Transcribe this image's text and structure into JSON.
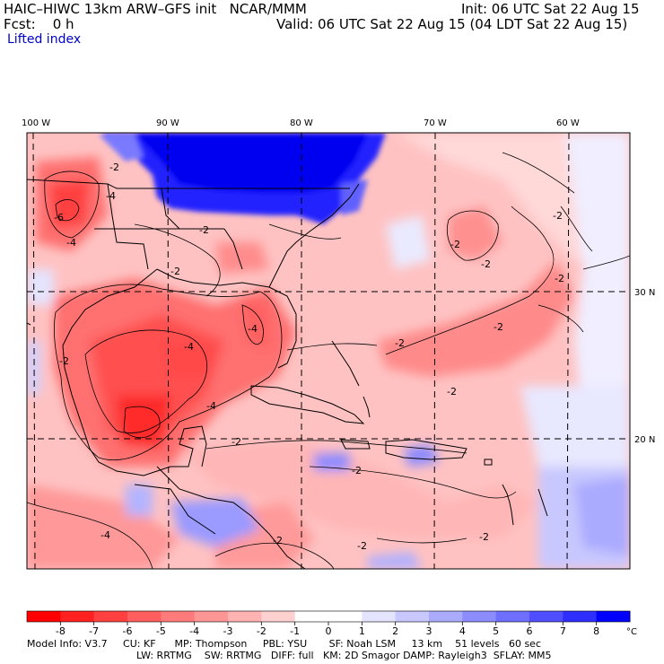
{
  "header": {
    "title_line": "HAIC–HIWC 13km ARW–GFS init   NCAR/MMM",
    "init": "Init: 06 UTC Sat 22 Aug 15",
    "fcst": "Fcst:    0 h",
    "valid": "Valid: 06 UTC Sat 22 Aug 15 (04 LDT Sat 22 Aug 15)",
    "field": "Lifted index"
  },
  "map": {
    "lon_labels": [
      "100 W",
      "90 W",
      "80 W",
      "70 W",
      "60 W"
    ],
    "lat_labels": [
      "30 N",
      "20 N"
    ],
    "contour_labels": [
      "-2",
      "-4",
      "-6"
    ]
  },
  "colorbar": {
    "ticks": [
      "-8",
      "-7",
      "-6",
      "-5",
      "-4",
      "-3",
      "-2",
      "-1",
      "0",
      "1",
      "2",
      "3",
      "4",
      "5",
      "6",
      "7",
      "8"
    ],
    "unit": "°C",
    "colors": [
      "#ff0000",
      "#ff2020",
      "#ff4040",
      "#ff5e5e",
      "#ff7a7a",
      "#ff9696",
      "#ffb2b2",
      "#ffd0d0",
      "#ffffff",
      "#e4e4ff",
      "#c8c8ff",
      "#aaaaff",
      "#8c8cff",
      "#6e6eff",
      "#4f4fff",
      "#2e2eff",
      "#0000ff"
    ]
  },
  "footer": {
    "line1": "Model Info: V3.7     CU: KF      MP: Thompson     PBL: YSU       SF: Noah LSM     13 km    51 levels   60 sec",
    "line2": "LW: RRTMG    SW: RRTMG   DIFF: full   KM: 2D Smagor DAMP: Rayleigh3  SFLAY: MM5"
  }
}
